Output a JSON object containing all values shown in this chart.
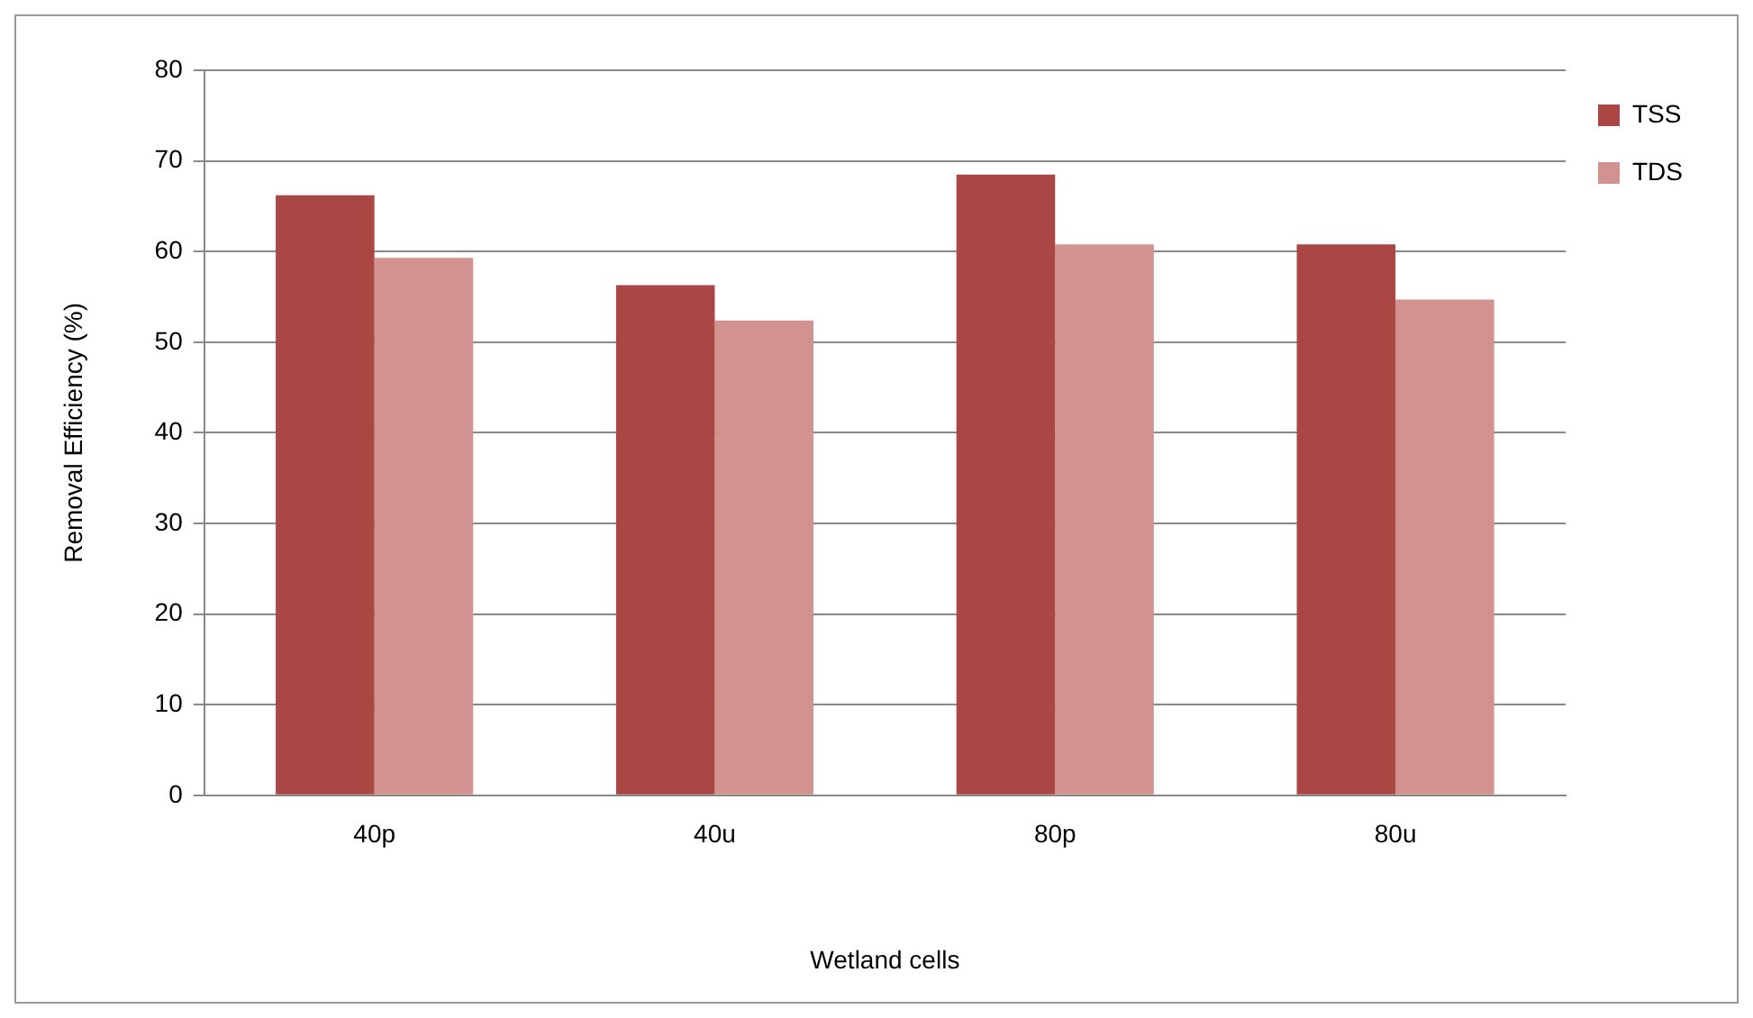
{
  "chart_data": {
    "type": "bar",
    "xlabel": "Wetland cells",
    "ylabel": "Removal Efficiency (%)",
    "categories": [
      "40p",
      "40u",
      "80p",
      "80u"
    ],
    "series": [
      {
        "name": "TSS",
        "color": "#aa4643",
        "values": [
          66.2,
          56.3,
          68.5,
          60.8
        ]
      },
      {
        "name": "TDS",
        "color": "#d29290",
        "values": [
          59.3,
          52.4,
          60.8,
          54.7
        ]
      }
    ],
    "ylim": [
      0,
      80
    ],
    "yticks": [
      0,
      10,
      20,
      30,
      40,
      50,
      60,
      70,
      80
    ],
    "grid": "y",
    "legend": "top right"
  }
}
